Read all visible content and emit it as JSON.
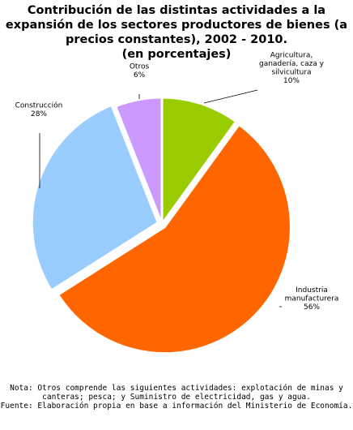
{
  "chart_data": {
    "type": "pie",
    "title_lines": [
      "Contribución de las distintas actividades a la",
      "expansión de los sectores productores de bienes (a",
      "precios constantes), 2002 - 2010.",
      "(en porcentajes)"
    ],
    "slices": [
      {
        "label_lines": [
          "Agricultura,",
          "ganadería, caza y",
          "silvicultura"
        ],
        "value": 10,
        "value_label": "10%",
        "color": "#99cc00"
      },
      {
        "label_lines": [
          "Industria",
          "manufacturera"
        ],
        "value": 56,
        "value_label": "56%",
        "color": "#ff6600"
      },
      {
        "label_lines": [
          "Construcción"
        ],
        "value": 28,
        "value_label": "28%",
        "color": "#99ccff"
      },
      {
        "label_lines": [
          "Otros"
        ],
        "value": 6,
        "value_label": "6%",
        "color": "#cc99ff"
      }
    ]
  },
  "notes": {
    "line1": "Nota: Otros comprende las siguientes actividades: explotación de minas y",
    "line2": "canteras; pesca; y Suministro de electricidad, gas y agua.",
    "line3": "Fuente: Elaboración propia en base a información del Ministerio de Economía."
  }
}
